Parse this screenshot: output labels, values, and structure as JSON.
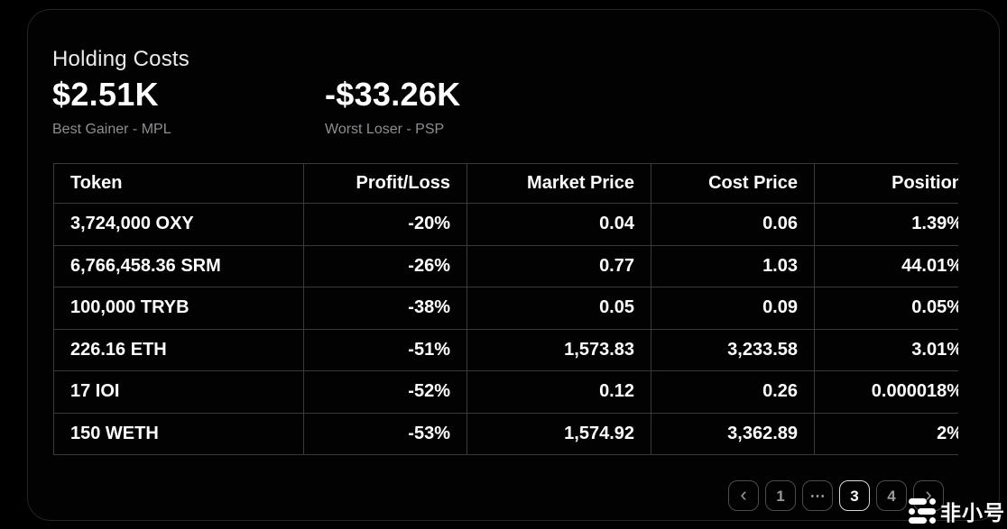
{
  "card": {
    "title": "Holding Costs",
    "stats": [
      {
        "value": "$2.51K",
        "label": "Best Gainer - MPL"
      },
      {
        "value": "-$33.26K",
        "label": "Worst Loser - PSP"
      }
    ]
  },
  "table": {
    "columns": [
      "Token",
      "Profit/Loss",
      "Market Price",
      "Cost Price",
      "Position"
    ],
    "rows": [
      [
        "3,724,000 OXY",
        "-20%",
        "0.04",
        "0.06",
        "1.39%"
      ],
      [
        "6,766,458.36 SRM",
        "-26%",
        "0.77",
        "1.03",
        "44.01%"
      ],
      [
        "100,000 TRYB",
        "-38%",
        "0.05",
        "0.09",
        "0.05%"
      ],
      [
        "226.16 ETH",
        "-51%",
        "1,573.83",
        "3,233.58",
        "3.01%"
      ],
      [
        "17 IOI",
        "-52%",
        "0.12",
        "0.26",
        "0.000018%"
      ],
      [
        "150 WETH",
        "-53%",
        "1,574.92",
        "3,362.89",
        "2%"
      ]
    ]
  },
  "pagination": {
    "buttons": [
      {
        "name": "prev-page-button",
        "label": "‹",
        "nav": true,
        "active": false
      },
      {
        "name": "page-button-1",
        "label": "1",
        "nav": false,
        "active": false
      },
      {
        "name": "page-ellipsis",
        "label": "⋯",
        "nav": false,
        "active": false
      },
      {
        "name": "page-button-3",
        "label": "3",
        "nav": false,
        "active": true
      },
      {
        "name": "page-button-4",
        "label": "4",
        "nav": false,
        "active": false
      },
      {
        "name": "next-page-button",
        "label": "›",
        "nav": true,
        "active": false
      }
    ]
  },
  "watermark": {
    "text": "非小号"
  },
  "colors": {
    "background": "#000000",
    "card_border": "#242427",
    "table_border": "#3a3a3c",
    "text_primary": "#ffffff",
    "text_secondary": "#8e8e93",
    "pagination_border": "#4c4c4f",
    "pagination_active_border": "#d9d9dd"
  }
}
